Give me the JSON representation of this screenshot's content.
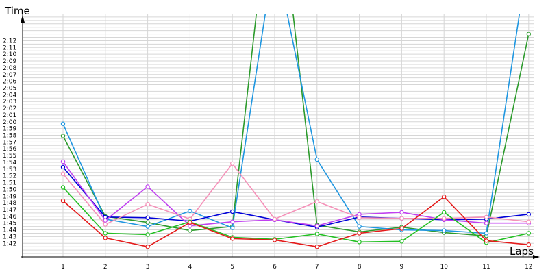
{
  "chart_data": {
    "type": "line",
    "xlabel": "Laps",
    "ylabel": "Time",
    "x": [
      1,
      2,
      3,
      4,
      5,
      6,
      7,
      8,
      9,
      10,
      11,
      12
    ],
    "ylim": [
      100,
      136
    ],
    "y_ticks": [
      "1:42",
      "1:43",
      "1:44",
      "1:45",
      "1:46",
      "1:47",
      "1:48",
      "1:49",
      "1:50",
      "1:51",
      "1:52",
      "1:53",
      "1:54",
      "1:55",
      "1:56",
      "1:57",
      "1:58",
      "1:59",
      "2:00",
      "2:01",
      "2:02",
      "2:03",
      "2:04",
      "2:05",
      "2:06",
      "2:07",
      "2:08",
      "2:09",
      "2:10",
      "2:11",
      "2:12"
    ],
    "y_tick_values": [
      102,
      103,
      104,
      105,
      106,
      107,
      108,
      109,
      110,
      111,
      112,
      113,
      114,
      115,
      116,
      117,
      118,
      119,
      120,
      121,
      122,
      123,
      124,
      125,
      126,
      127,
      128,
      129,
      130,
      131,
      132
    ],
    "grid": true,
    "series": [
      {
        "color": "#2b9a2b",
        "values": [
          117.9,
          106.0,
          105.1,
          103.9,
          104.5,
          160,
          104.7,
          103.7,
          104.4,
          103.6,
          103.1,
          133.0
        ]
      },
      {
        "color": "#1e96e0",
        "values": [
          119.7,
          105.6,
          104.5,
          106.8,
          104.3,
          145,
          114.4,
          104.5,
          104.0,
          103.9,
          103.5,
          145
        ]
      },
      {
        "color": "#0000d8",
        "values": [
          113.3,
          105.9,
          105.8,
          105.3,
          106.7,
          105.5,
          104.4,
          105.9,
          105.7,
          105.5,
          105.6,
          106.3
        ]
      },
      {
        "color": "#c040f0",
        "values": [
          114.1,
          105.4,
          110.4,
          104.6,
          105.2,
          105.5,
          104.6,
          106.3,
          106.6,
          105.5,
          105.0,
          105.0
        ]
      },
      {
        "color": "#f590b8",
        "values": [
          112.3,
          104.8,
          107.8,
          105.6,
          113.8,
          105.6,
          108.2,
          105.8,
          105.7,
          105.7,
          105.9,
          105.2
        ]
      },
      {
        "color": "#22c022",
        "values": [
          110.3,
          103.5,
          103.3,
          105.2,
          102.9,
          102.6,
          103.4,
          102.2,
          102.3,
          106.6,
          102.1,
          103.5
        ]
      },
      {
        "color": "#e41a1a",
        "values": [
          108.3,
          102.8,
          101.5,
          105.1,
          102.7,
          102.5,
          101.5,
          103.5,
          104.2,
          108.9,
          102.4,
          101.8
        ]
      }
    ]
  }
}
